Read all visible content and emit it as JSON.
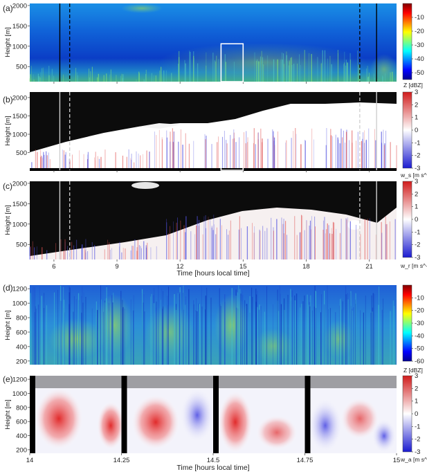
{
  "chart_data": [
    {
      "type": "heatmap",
      "panel_label": "(a)",
      "ylabel": "Height [m]",
      "yticks": [
        500,
        1000,
        1500,
        2000
      ],
      "ylim": [
        130,
        2050
      ],
      "xlim": [
        4.85,
        22.3
      ],
      "xticks": [
        6,
        9,
        12,
        15,
        18,
        21
      ],
      "colorbar": {
        "label": "Z [dBZ]",
        "ticks": [
          -10,
          -20,
          -30,
          -40,
          -50
        ],
        "range": [
          -55,
          0
        ],
        "colormap": "jet"
      },
      "markers": {
        "solid_lines": [
          6.28,
          21.35
        ],
        "dashed_lines": [
          6.75,
          20.55
        ],
        "box": {
          "x": [
            13.95,
            15.0
          ],
          "y": [
            130,
            1060
          ]
        }
      }
    },
    {
      "type": "heatmap",
      "panel_label": "(b)",
      "ylabel": "Height [m]",
      "yticks": [
        500,
        1000,
        1500,
        2000
      ],
      "ylim": [
        20,
        2150
      ],
      "xlim": [
        4.85,
        22.3
      ],
      "xticks": [
        6,
        9,
        12,
        15,
        18,
        21
      ],
      "colorbar": {
        "label": "w_s [m s^-1]",
        "ticks": [
          3,
          2,
          1,
          0,
          -1,
          -2,
          -3
        ],
        "range": [
          -3,
          3
        ],
        "colormap": "bwr"
      },
      "markers": {
        "solid_lines": [
          6.28,
          21.35
        ],
        "dashed_lines": [
          6.75,
          20.55
        ],
        "box": {
          "x": [
            13.95,
            15.0
          ],
          "y": [
            20,
            1160
          ]
        }
      }
    },
    {
      "type": "heatmap",
      "panel_label": "(c)",
      "ylabel": "Height [m]",
      "xlabel": "Time [hours local time]",
      "yticks": [
        500,
        1000,
        1500,
        2000
      ],
      "ylim": [
        130,
        2050
      ],
      "xlim": [
        4.85,
        22.3
      ],
      "xticks": [
        6,
        9,
        12,
        15,
        18,
        21
      ],
      "colorbar": {
        "label": "w_r [m s^-1]",
        "ticks": [
          3,
          2,
          1,
          0,
          -1,
          -2,
          -3
        ],
        "range": [
          -3,
          3
        ],
        "colormap": "bwr"
      },
      "markers": {
        "solid_lines": [
          6.28,
          21.35
        ],
        "dashed_lines": [
          6.75,
          20.55
        ]
      }
    },
    {
      "type": "heatmap",
      "panel_label": "(d)",
      "ylabel": "Height [m]",
      "yticks": [
        200,
        400,
        600,
        800,
        1000,
        1200
      ],
      "ylim": [
        150,
        1250
      ],
      "xlim": [
        14.0,
        15.0
      ],
      "colorbar": {
        "label": "Z [dBZ]",
        "ticks": [
          -10,
          -20,
          -30,
          -40,
          -50,
          -60
        ],
        "range": [
          -60,
          0
        ],
        "colormap": "jet"
      }
    },
    {
      "type": "heatmap",
      "panel_label": "(e)",
      "ylabel": "Height [m]",
      "xlabel": "Time [hours local time]",
      "yticks": [
        200,
        400,
        600,
        800,
        1000,
        1200
      ],
      "ylim": [
        150,
        1250
      ],
      "xlim": [
        14.0,
        15.0
      ],
      "xticks": [
        "14",
        "14.25",
        "14.5",
        "14.75",
        "15"
      ],
      "colorbar": {
        "label": "w_a [m s^-1]",
        "ticks": [
          3,
          2,
          1,
          0,
          -1,
          -2,
          -3
        ],
        "range": [
          -3,
          3
        ],
        "colormap": "bwr"
      },
      "gaps": [
        14.0,
        14.25,
        14.5,
        14.75
      ]
    }
  ]
}
